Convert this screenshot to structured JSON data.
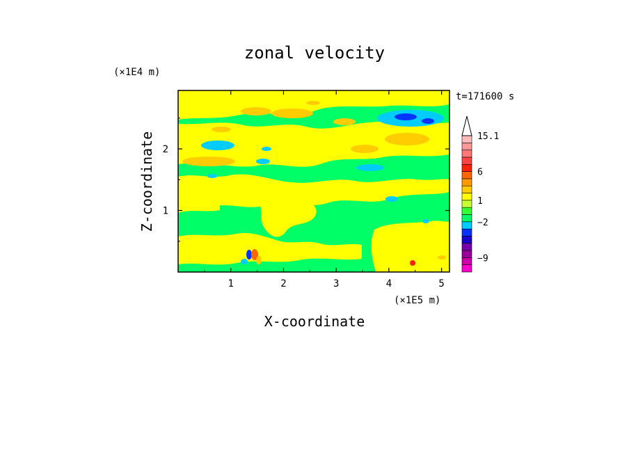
{
  "chart_data": {
    "type": "heatmap",
    "title": "zonal velocity",
    "xlabel": "X-coordinate",
    "ylabel": "Z-coordinate",
    "x_unit": "(×1E5 m)",
    "y_unit": "(×1E4 m)",
    "time_label": "t=171600 s",
    "xlim": [
      0,
      5.15
    ],
    "ylim": [
      0,
      2.95
    ],
    "x_ticks": [
      1,
      2,
      3,
      4,
      5
    ],
    "y_ticks": [
      1,
      2
    ],
    "colorbar": {
      "levels": [
        -12,
        -10.5,
        -9,
        -7.5,
        -6,
        -4.5,
        -3,
        -2,
        -1,
        0,
        1,
        2,
        3,
        4.5,
        6,
        7.5,
        9,
        10.5,
        12,
        15.1
      ],
      "colors": [
        "#ff00cc",
        "#cc00aa",
        "#990099",
        "#7700aa",
        "#1a00cc",
        "#0033ff",
        "#00ccff",
        "#00ff66",
        "#33ff33",
        "#ccff33",
        "#ffff00",
        "#ffcc00",
        "#ff9900",
        "#ff6600",
        "#ff2200",
        "#ff4444",
        "#ff7777",
        "#ff9999",
        "#ffbbbb"
      ],
      "labels": [
        "15.1",
        "6",
        "1",
        "−2",
        "−9"
      ],
      "label_values": [
        15.1,
        6,
        1,
        -2,
        -9
      ]
    },
    "colors": {
      "green": "#00ff66",
      "yellow": "#ffff00",
      "orange": "#ffcc00",
      "cyan": "#00ccff",
      "blue": "#0033ff",
      "dark_blue": "#1a00cc",
      "red": "#ff3300",
      "magenta": "#ff00cc"
    }
  }
}
